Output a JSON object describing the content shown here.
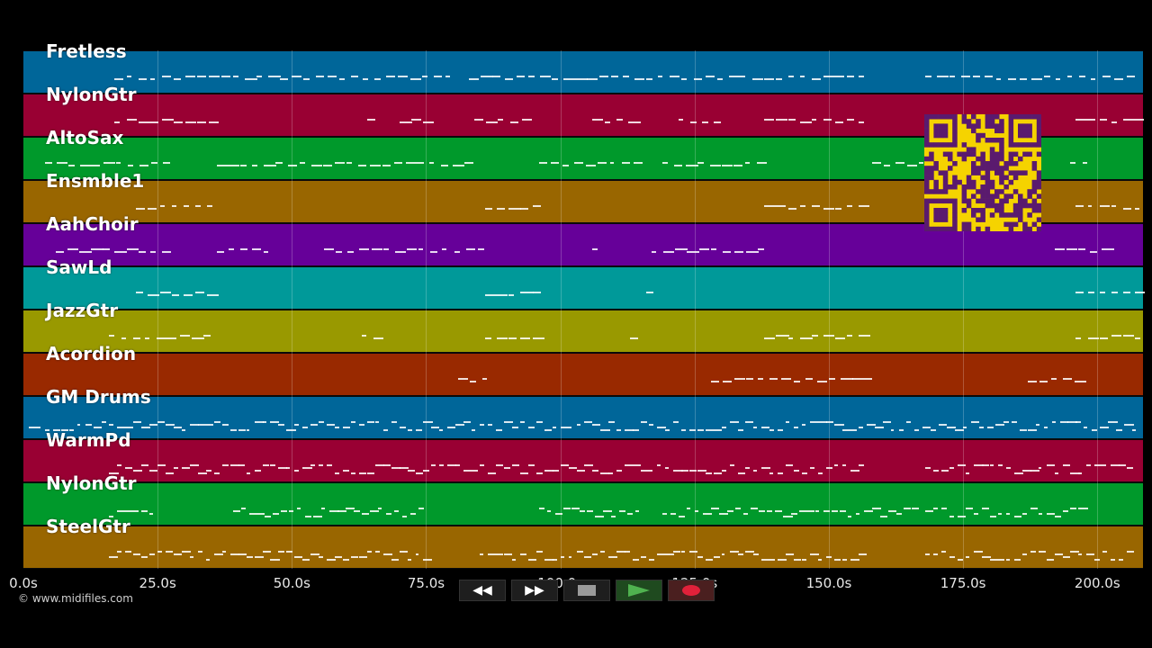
{
  "tracks": [
    {
      "name": "Fretless",
      "color": "#006699"
    },
    {
      "name": "NylonGtr",
      "color": "#990033"
    },
    {
      "name": "AltoSax",
      "color": "#00992b"
    },
    {
      "name": "Ensmble1",
      "color": "#996600"
    },
    {
      "name": "AahChoir",
      "color": "#660099"
    },
    {
      "name": "SawLd",
      "color": "#009999"
    },
    {
      "name": "JazzGtr",
      "color": "#999900"
    },
    {
      "name": "Acordion",
      "color": "#992900"
    },
    {
      "name": "GM Drums",
      "color": "#006699"
    },
    {
      "name": "WarmPd",
      "color": "#990033"
    },
    {
      "name": "NylonGtr",
      "color": "#00992b"
    },
    {
      "name": "SteelGtr",
      "color": "#996600"
    }
  ],
  "time_axis": {
    "ticks": [
      "0.0s",
      "25.0s",
      "50.0s",
      "75.0s",
      "100.0s",
      "125.0s",
      "150.0s",
      "175.0s",
      "200.0s"
    ],
    "tick_values": [
      0,
      25,
      50,
      75,
      100,
      125,
      150,
      175,
      200
    ],
    "max_seconds": 208.5
  },
  "copyright": "© www.midifiles.com",
  "transport": {
    "rewind_icon": "rewind-icon",
    "fast_forward_icon": "fast-forward-icon",
    "stop_icon": "stop-icon",
    "play_icon": "play-icon",
    "record_icon": "record-icon"
  },
  "qr_code": {
    "icon": "qr-code-icon",
    "color": "#f5d300",
    "dark": "#5a1a6e"
  }
}
